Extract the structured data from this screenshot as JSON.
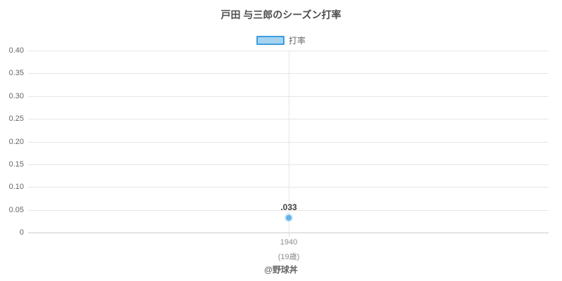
{
  "page": {
    "title": "戸田 与三郎のシーズン打率",
    "credit": "@野球丼"
  },
  "legend": {
    "series_label": "打率"
  },
  "colors": {
    "series_fill": "#a5d3f0",
    "series_border": "#3f9ddd",
    "marker": "#62b2e8",
    "gridline": "#e6e6e6",
    "axis_line": "#cccccc"
  },
  "chart_data": {
    "type": "line",
    "title": "戸田 与三郎のシーズン打率",
    "categories": [
      "1940"
    ],
    "category_sublabels": [
      "(19歳)"
    ],
    "series": [
      {
        "name": "打率",
        "values": [
          0.033
        ],
        "value_labels": [
          ".033"
        ]
      }
    ],
    "xlabel": "",
    "ylabel": "",
    "ylim": [
      0,
      0.4
    ],
    "yticks": [
      0,
      0.05,
      0.1,
      0.15,
      0.2,
      0.25,
      0.3,
      0.35,
      0.4
    ],
    "ytick_labels": [
      "0",
      "0.05",
      "0.10",
      "0.15",
      "0.20",
      "0.25",
      "0.30",
      "0.35",
      "0.40"
    ],
    "grid": true,
    "legend_position": "top",
    "credit": "@野球丼"
  }
}
